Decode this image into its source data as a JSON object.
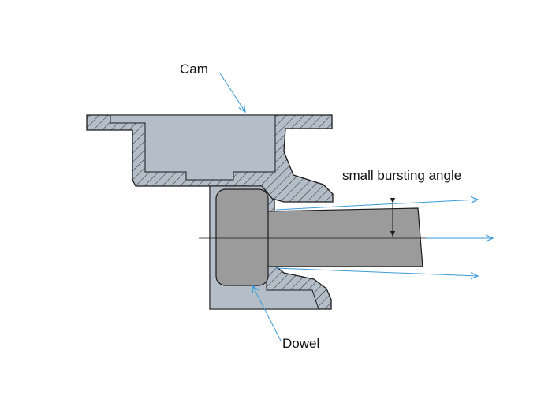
{
  "labels": {
    "cam": "Cam",
    "dowel": "Dowel",
    "angle": "small bursting angle"
  },
  "colors": {
    "section_fill": "#b4bec9",
    "dowel_fill": "#9b9b9b",
    "outline": "#1a1a1a",
    "leader": "#3a9ad9",
    "hatch": "#2a2a2a"
  }
}
